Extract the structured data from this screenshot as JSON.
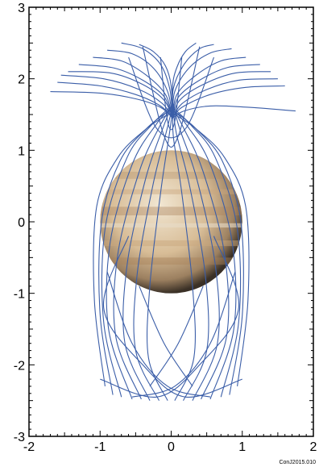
{
  "chart_data": {
    "type": "line",
    "title": "",
    "xlabel": "",
    "ylabel": "",
    "xlim": [
      -2,
      2
    ],
    "ylim": [
      -3,
      3
    ],
    "x_ticks": [
      -2,
      -1,
      0,
      1,
      2
    ],
    "y_ticks": [
      -3,
      -2,
      -1,
      0,
      1,
      2,
      3
    ],
    "x_tick_labels": [
      "-2",
      "-1",
      "0",
      "1",
      "2"
    ],
    "y_tick_labels": [
      "-3",
      "-2",
      "-1",
      "0",
      "1",
      "2",
      "3"
    ],
    "grid": false,
    "legend": "none",
    "planet_disk": {
      "center": [
        0,
        0
      ],
      "radius": 1.0
    },
    "series": [
      {
        "x": [
          -0.93,
          -1.08,
          -1.05,
          -0.75,
          -0.35,
          -0.05
        ],
        "y": [
          -2.3,
          -1.1,
          0.2,
          0.9,
          1.3,
          1.5
        ]
      },
      {
        "x": [
          -0.82,
          -1.0,
          -0.98,
          -0.72,
          -0.35,
          -0.04
        ],
        "y": [
          -2.42,
          -1.3,
          0.0,
          0.85,
          1.3,
          1.55
        ]
      },
      {
        "x": [
          -0.7,
          -0.95,
          -0.93,
          -0.62,
          -0.28,
          -0.02
        ],
        "y": [
          -2.45,
          -1.4,
          -0.1,
          0.9,
          1.35,
          1.6
        ]
      },
      {
        "x": [
          -0.55,
          -0.88,
          -0.86,
          -0.55,
          -0.22,
          0.0
        ],
        "y": [
          -2.48,
          -1.5,
          -0.3,
          0.8,
          1.35,
          1.6
        ]
      },
      {
        "x": [
          -0.42,
          -0.78,
          -0.75,
          -0.45,
          -0.18,
          0.01
        ],
        "y": [
          -2.48,
          -1.6,
          -0.45,
          0.7,
          1.3,
          1.62
        ]
      },
      {
        "x": [
          -0.3,
          -0.65,
          -0.62,
          -0.36,
          -0.12,
          0.02
        ],
        "y": [
          -2.5,
          -1.7,
          -0.6,
          0.6,
          1.3,
          1.65
        ]
      },
      {
        "x": [
          -0.17,
          -0.5,
          -0.48,
          -0.26,
          -0.07,
          0.03
        ],
        "y": [
          -2.5,
          -1.8,
          -0.75,
          0.5,
          1.25,
          1.65
        ]
      },
      {
        "x": [
          -0.05,
          -0.32,
          -0.3,
          -0.15,
          -0.03,
          0.03
        ],
        "y": [
          -2.5,
          -1.9,
          -0.9,
          0.4,
          1.2,
          1.62
        ]
      },
      {
        "x": [
          0.93,
          1.08,
          1.05,
          0.75,
          0.35,
          0.05
        ],
        "y": [
          -2.3,
          -1.1,
          0.2,
          0.9,
          1.3,
          1.5
        ]
      },
      {
        "x": [
          0.82,
          1.0,
          0.98,
          0.72,
          0.35,
          0.04
        ],
        "y": [
          -2.42,
          -1.3,
          0.0,
          0.85,
          1.3,
          1.55
        ]
      },
      {
        "x": [
          0.7,
          0.95,
          0.93,
          0.62,
          0.28,
          0.02
        ],
        "y": [
          -2.45,
          -1.4,
          -0.1,
          0.9,
          1.35,
          1.6
        ]
      },
      {
        "x": [
          0.55,
          0.88,
          0.86,
          0.55,
          0.22,
          0.0
        ],
        "y": [
          -2.48,
          -1.5,
          -0.3,
          0.8,
          1.35,
          1.6
        ]
      },
      {
        "x": [
          0.42,
          0.78,
          0.75,
          0.45,
          0.18,
          0.01
        ],
        "y": [
          -2.48,
          -1.6,
          -0.45,
          0.7,
          1.3,
          1.62
        ]
      },
      {
        "x": [
          0.3,
          0.65,
          0.62,
          0.36,
          0.12,
          0.02
        ],
        "y": [
          -2.5,
          -1.7,
          -0.6,
          0.6,
          1.3,
          1.65
        ]
      },
      {
        "x": [
          0.17,
          0.5,
          0.48,
          0.26,
          0.07,
          0.03
        ],
        "y": [
          -2.5,
          -1.8,
          -0.75,
          0.5,
          1.25,
          1.65
        ]
      },
      {
        "x": [
          0.05,
          0.32,
          0.3,
          0.15,
          0.03,
          0.03
        ],
        "y": [
          -2.5,
          -1.9,
          -0.9,
          0.4,
          1.2,
          1.62
        ]
      },
      {
        "x": [
          -1.0,
          -0.2,
          0.4,
          0.95,
          0.6
        ],
        "y": [
          -2.2,
          -2.45,
          -2.0,
          -1.2,
          -0.2
        ]
      },
      {
        "x": [
          1.0,
          0.2,
          -0.4,
          -0.95,
          -0.6
        ],
        "y": [
          -2.2,
          -2.45,
          -2.0,
          -1.2,
          -0.2
        ]
      },
      {
        "x": [
          -0.55,
          0.05,
          0.55,
          0.9
        ],
        "y": [
          -2.45,
          -2.3,
          -1.7,
          -0.7
        ]
      },
      {
        "x": [
          0.55,
          -0.05,
          -0.55,
          -0.9
        ],
        "y": [
          -2.45,
          -2.3,
          -1.7,
          -0.7
        ]
      },
      {
        "x": [
          -0.3,
          0.1,
          0.45
        ],
        "y": [
          -2.3,
          -1.7,
          -0.9
        ]
      },
      {
        "x": [
          0.3,
          -0.1,
          -0.45
        ],
        "y": [
          -2.3,
          -1.7,
          -0.9
        ]
      },
      {
        "x": [
          -1.7,
          -1.0,
          -0.5,
          -0.15,
          0.02
        ],
        "y": [
          1.82,
          1.8,
          1.72,
          1.6,
          1.45
        ]
      },
      {
        "x": [
          -1.6,
          -1.0,
          -0.5,
          -0.15,
          0.02
        ],
        "y": [
          1.95,
          1.9,
          1.78,
          1.62,
          1.45
        ]
      },
      {
        "x": [
          -1.55,
          -0.95,
          -0.45,
          -0.12,
          0.02
        ],
        "y": [
          2.05,
          2.0,
          1.85,
          1.65,
          1.45
        ]
      },
      {
        "x": [
          -1.45,
          -0.85,
          -0.4,
          -0.1,
          0.02
        ],
        "y": [
          2.1,
          2.08,
          1.92,
          1.7,
          1.45
        ]
      },
      {
        "x": [
          -1.3,
          -0.8,
          -0.4,
          -0.1,
          0.02
        ],
        "y": [
          2.2,
          2.15,
          1.98,
          1.75,
          1.45
        ]
      },
      {
        "x": [
          -1.1,
          -0.7,
          -0.35,
          -0.08,
          0.02
        ],
        "y": [
          2.3,
          2.25,
          2.05,
          1.78,
          1.45
        ]
      },
      {
        "x": [
          -0.9,
          -0.55,
          -0.25,
          -0.05,
          0.02
        ],
        "y": [
          2.4,
          2.35,
          2.15,
          1.82,
          1.45
        ]
      },
      {
        "x": [
          -0.7,
          -0.4,
          -0.15,
          -0.02,
          0.02
        ],
        "y": [
          2.5,
          2.42,
          2.2,
          1.86,
          1.45
        ]
      },
      {
        "x": [
          -0.45,
          -0.25,
          -0.08,
          0.0,
          0.02
        ],
        "y": [
          2.48,
          2.38,
          2.18,
          1.9,
          1.45
        ]
      },
      {
        "x": [
          1.75,
          1.1,
          0.55,
          0.18,
          0.02
        ],
        "y": [
          1.55,
          1.6,
          1.62,
          1.55,
          1.45
        ]
      },
      {
        "x": [
          1.6,
          1.05,
          0.55,
          0.15,
          0.02
        ],
        "y": [
          1.9,
          1.88,
          1.78,
          1.6,
          1.45
        ]
      },
      {
        "x": [
          1.5,
          0.95,
          0.5,
          0.15,
          0.02
        ],
        "y": [
          2.0,
          1.98,
          1.85,
          1.65,
          1.45
        ]
      },
      {
        "x": [
          1.4,
          0.9,
          0.45,
          0.12,
          0.02
        ],
        "y": [
          2.1,
          2.08,
          1.92,
          1.7,
          1.45
        ]
      },
      {
        "x": [
          1.25,
          0.8,
          0.4,
          0.1,
          0.02
        ],
        "y": [
          2.2,
          2.16,
          1.98,
          1.74,
          1.45
        ]
      },
      {
        "x": [
          1.05,
          0.7,
          0.35,
          0.08,
          0.02
        ],
        "y": [
          2.3,
          2.25,
          2.05,
          1.78,
          1.45
        ]
      },
      {
        "x": [
          0.85,
          0.55,
          0.25,
          0.05,
          0.02
        ],
        "y": [
          2.42,
          2.36,
          2.15,
          1.82,
          1.45
        ]
      },
      {
        "x": [
          0.6,
          0.4,
          0.18,
          0.03,
          0.02
        ],
        "y": [
          2.48,
          2.42,
          2.2,
          1.86,
          1.45
        ]
      },
      {
        "x": [
          0.35,
          0.2,
          0.08,
          0.02,
          0.02
        ],
        "y": [
          2.5,
          2.38,
          2.16,
          1.9,
          1.45
        ]
      },
      {
        "x": [
          -0.6,
          -0.2,
          0.2,
          0.6
        ],
        "y": [
          2.3,
          1.3,
          1.3,
          2.3
        ]
      },
      {
        "x": [
          -0.4,
          -0.1,
          0.1,
          0.4
        ],
        "y": [
          2.45,
          1.2,
          1.2,
          2.45
        ]
      },
      {
        "x": [
          -0.15,
          -0.05,
          0.05,
          0.15
        ],
        "y": [
          2.3,
          1.4,
          1.4,
          2.3
        ]
      }
    ]
  },
  "colors": {
    "field_line": "#3b5ea8",
    "axis": "#000000",
    "background": "#ffffff",
    "planet_light": "#e8dcc8",
    "planet_mid": "#c9a77e",
    "planet_band": "#a9835c",
    "planet_dark": "#3a3026"
  },
  "credit": "ConJ2015.010"
}
